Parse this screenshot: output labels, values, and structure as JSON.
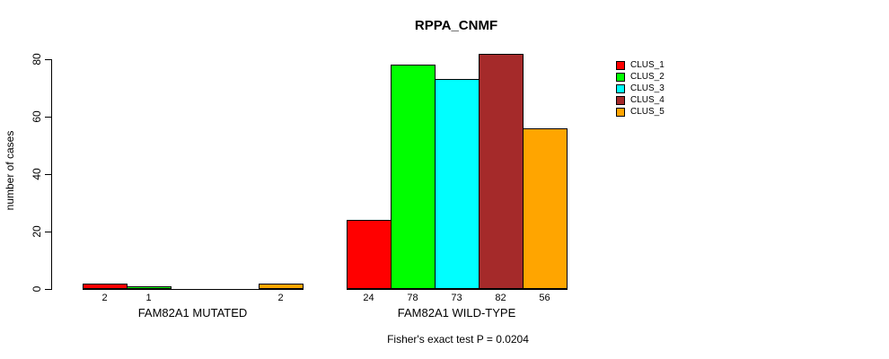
{
  "chart_data": {
    "type": "bar",
    "title": "RPPA_CNMF",
    "ylabel": "number of cases",
    "xlabel": "",
    "ylim": [
      0,
      80
    ],
    "yticks": [
      "0",
      "20",
      "40",
      "60",
      "80"
    ],
    "grid": false,
    "legend_position": "right-outside",
    "categories": [
      "FAM82A1 MUTATED",
      "FAM82A1 WILD-TYPE"
    ],
    "series": [
      {
        "name": "CLUS_1",
        "color": "#FF0000",
        "values": [
          2,
          24
        ]
      },
      {
        "name": "CLUS_2",
        "color": "#00FF00",
        "values": [
          1,
          78
        ]
      },
      {
        "name": "CLUS_3",
        "color": "#00FFFF",
        "values": [
          0,
          73
        ]
      },
      {
        "name": "CLUS_4",
        "color": "#A52A2A",
        "values": [
          0,
          82
        ]
      },
      {
        "name": "CLUS_5",
        "color": "#FFA500",
        "values": [
          2,
          56
        ]
      }
    ],
    "groups": [
      {
        "label": "FAM82A1 MUTATED",
        "values": [
          2,
          1,
          0,
          0,
          2
        ],
        "bar_labels": [
          "2",
          "1",
          "",
          "",
          "2"
        ]
      },
      {
        "label": "FAM82A1 WILD-TYPE",
        "values": [
          24,
          78,
          73,
          82,
          56
        ],
        "bar_labels": [
          "24",
          "78",
          "73",
          "82",
          "56"
        ]
      }
    ],
    "footnote": "Fisher's exact test P = 0.0204"
  }
}
